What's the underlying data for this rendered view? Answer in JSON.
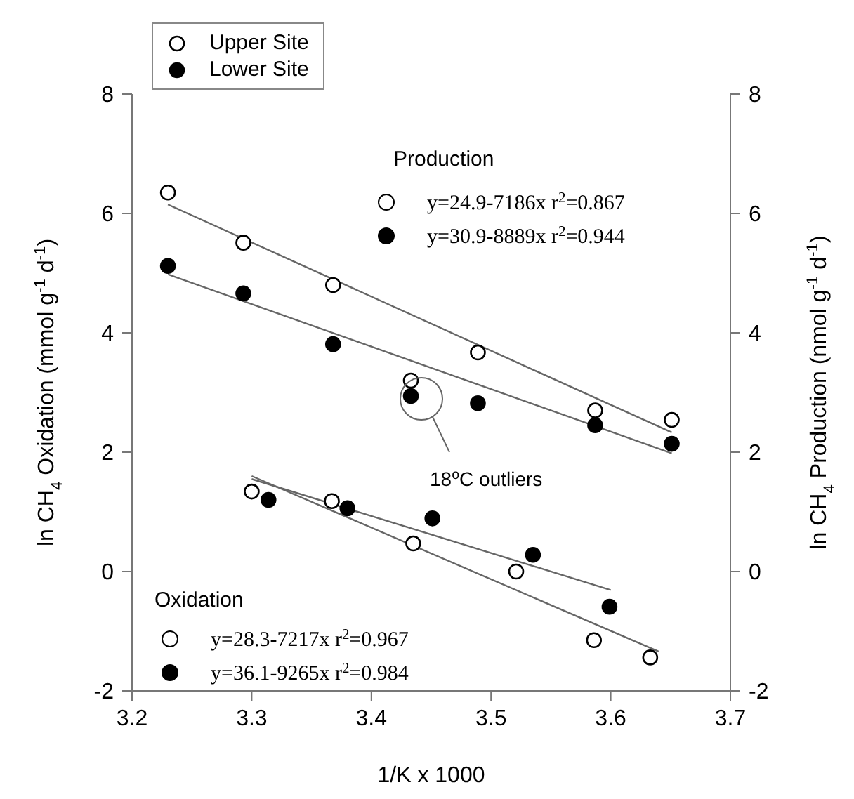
{
  "chart_data": {
    "type": "scatter",
    "xlabel": "1/K x 1000",
    "ylabel": "ln CH$_{4}$ Oxidation (mmol g$^{-1}$ d$^{-1}$)",
    "y2label": "ln CH$_{4}$ Production (nmol g$^{-1}$ d$^{-1}$)",
    "xlim": [
      3.2,
      3.7
    ],
    "xticks": [
      3.2,
      3.3,
      3.4,
      3.5,
      3.6,
      3.7
    ],
    "ylim": [
      -2,
      8
    ],
    "yticks": [
      -2,
      0,
      2,
      4,
      6,
      8
    ],
    "y2lim": [
      -2,
      8
    ],
    "y2ticks": [
      -2,
      0,
      2,
      4,
      6,
      8
    ],
    "legend": "top left",
    "marker": "circle",
    "annotations": [
      "Production",
      "y=24.9-7186x r$^{2}$=0.867",
      "y=30.9-8889x r$^{2}$=0.944",
      "Oxidation",
      "y=28.3-7217x r$^{2}$=0.967",
      "y=36.1-9265x r$^{2}$=0.984",
      "18$^{o}$C outliers"
    ],
    "series": [
      {
        "name": "Upper Site",
        "color": "#ffffff",
        "x": [
          3.23,
          3.293,
          3.368,
          3.433,
          3.489,
          3.587,
          3.651
        ],
        "values": [
          6.35,
          5.51,
          4.8,
          3.2,
          3.67,
          2.7,
          2.54
        ]
      },
      {
        "name": "Lower Site",
        "color": "#000000",
        "x": [
          3.23,
          3.293,
          3.368,
          3.433,
          3.489,
          3.587,
          3.651
        ],
        "values": [
          5.12,
          4.66,
          3.81,
          2.94,
          2.82,
          2.45,
          2.14
        ]
      },
      {
        "color": "#ffffff",
        "x": [
          3.3,
          3.367,
          3.435,
          3.521,
          3.586,
          3.633
        ],
        "values": [
          1.34,
          1.18,
          0.47,
          0.0,
          -1.15,
          -1.44
        ]
      },
      {
        "color": "#000000",
        "x": [
          3.314,
          3.38,
          3.451,
          3.535,
          3.599
        ],
        "values": [
          1.2,
          1.06,
          0.89,
          0.28,
          -0.59
        ]
      },
      {
        "type": "line",
        "marker": "none",
        "color": "#666666",
        "x": [
          3.23,
          3.651
        ],
        "values": [
          6.15,
          2.33
        ]
      },
      {
        "type": "line",
        "marker": "none",
        "color": "#666666",
        "x": [
          3.23,
          3.651
        ],
        "values": [
          4.98,
          1.98
        ]
      },
      {
        "type": "line",
        "marker": "none",
        "color": "#666666",
        "x": [
          3.3,
          3.64
        ],
        "values": [
          1.6,
          -1.34
        ]
      },
      {
        "type": "line",
        "marker": "none",
        "color": "#666666",
        "x": [
          3.3,
          3.6
        ],
        "values": [
          1.55,
          -0.31
        ]
      }
    ]
  }
}
